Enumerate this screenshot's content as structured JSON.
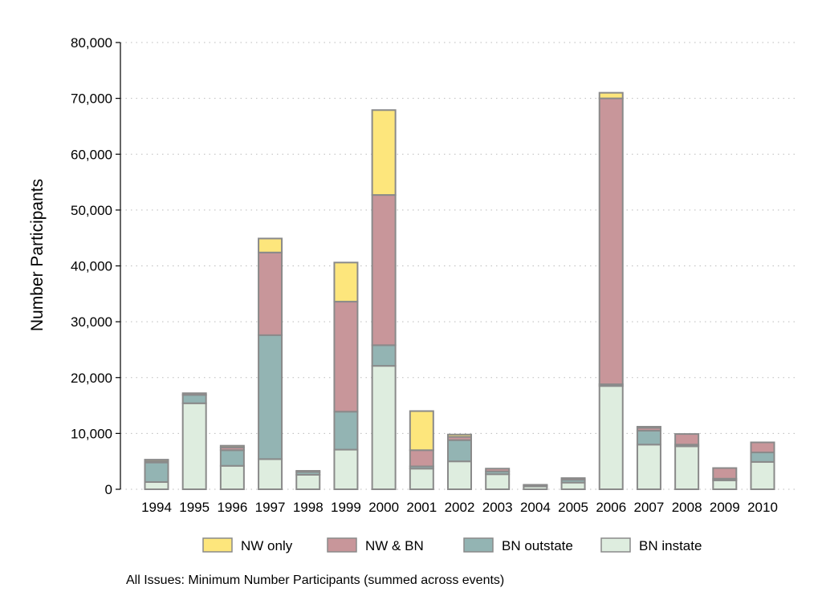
{
  "chart_data": {
    "type": "bar",
    "stacked": true,
    "title": "",
    "xlabel": "",
    "ylabel": "Number Participants",
    "ylim": [
      0,
      80000
    ],
    "yticks": [
      0,
      10000,
      20000,
      30000,
      40000,
      50000,
      60000,
      70000,
      80000
    ],
    "ytick_labels": [
      "0",
      "10,000",
      "20,000",
      "30,000",
      "40,000",
      "50,000",
      "60,000",
      "70,000",
      "80,000"
    ],
    "grid": "horizontal dotted",
    "legend_position": "bottom",
    "note": "All Issues: Minimum Number Participants (summed across events)",
    "categories": [
      "1994",
      "1995",
      "1996",
      "1997",
      "1998",
      "1999",
      "2000",
      "2001",
      "2002",
      "2003",
      "2004",
      "2005",
      "2006",
      "2007",
      "2008",
      "2009",
      "2010"
    ],
    "series": [
      {
        "name": "BN instate",
        "color": "#deeddf",
        "values": [
          1300,
          15400,
          4200,
          5400,
          2600,
          7100,
          22100,
          3700,
          5000,
          2700,
          500,
          1200,
          18500,
          8000,
          7700,
          1600,
          4900
        ]
      },
      {
        "name": "BN outstate",
        "color": "#93b4b3",
        "values": [
          3500,
          1500,
          2800,
          22200,
          500,
          6800,
          3700,
          400,
          3800,
          500,
          200,
          500,
          300,
          2500,
          300,
          300,
          1700
        ]
      },
      {
        "name": "NW & BN",
        "color": "#c8969a",
        "values": [
          200,
          300,
          500,
          14800,
          200,
          19700,
          26900,
          2900,
          600,
          500,
          100,
          300,
          51200,
          500,
          1900,
          1900,
          1800
        ]
      },
      {
        "name": "NW only",
        "color": "#fde67c",
        "values": [
          300,
          0,
          300,
          2500,
          0,
          7000,
          15200,
          7000,
          400,
          0,
          0,
          0,
          1000,
          200,
          0,
          0,
          0
        ]
      }
    ],
    "legend_order": [
      "NW only",
      "NW & BN",
      "BN outstate",
      "BN instate"
    ],
    "outline_color": "#8a8a8a"
  }
}
